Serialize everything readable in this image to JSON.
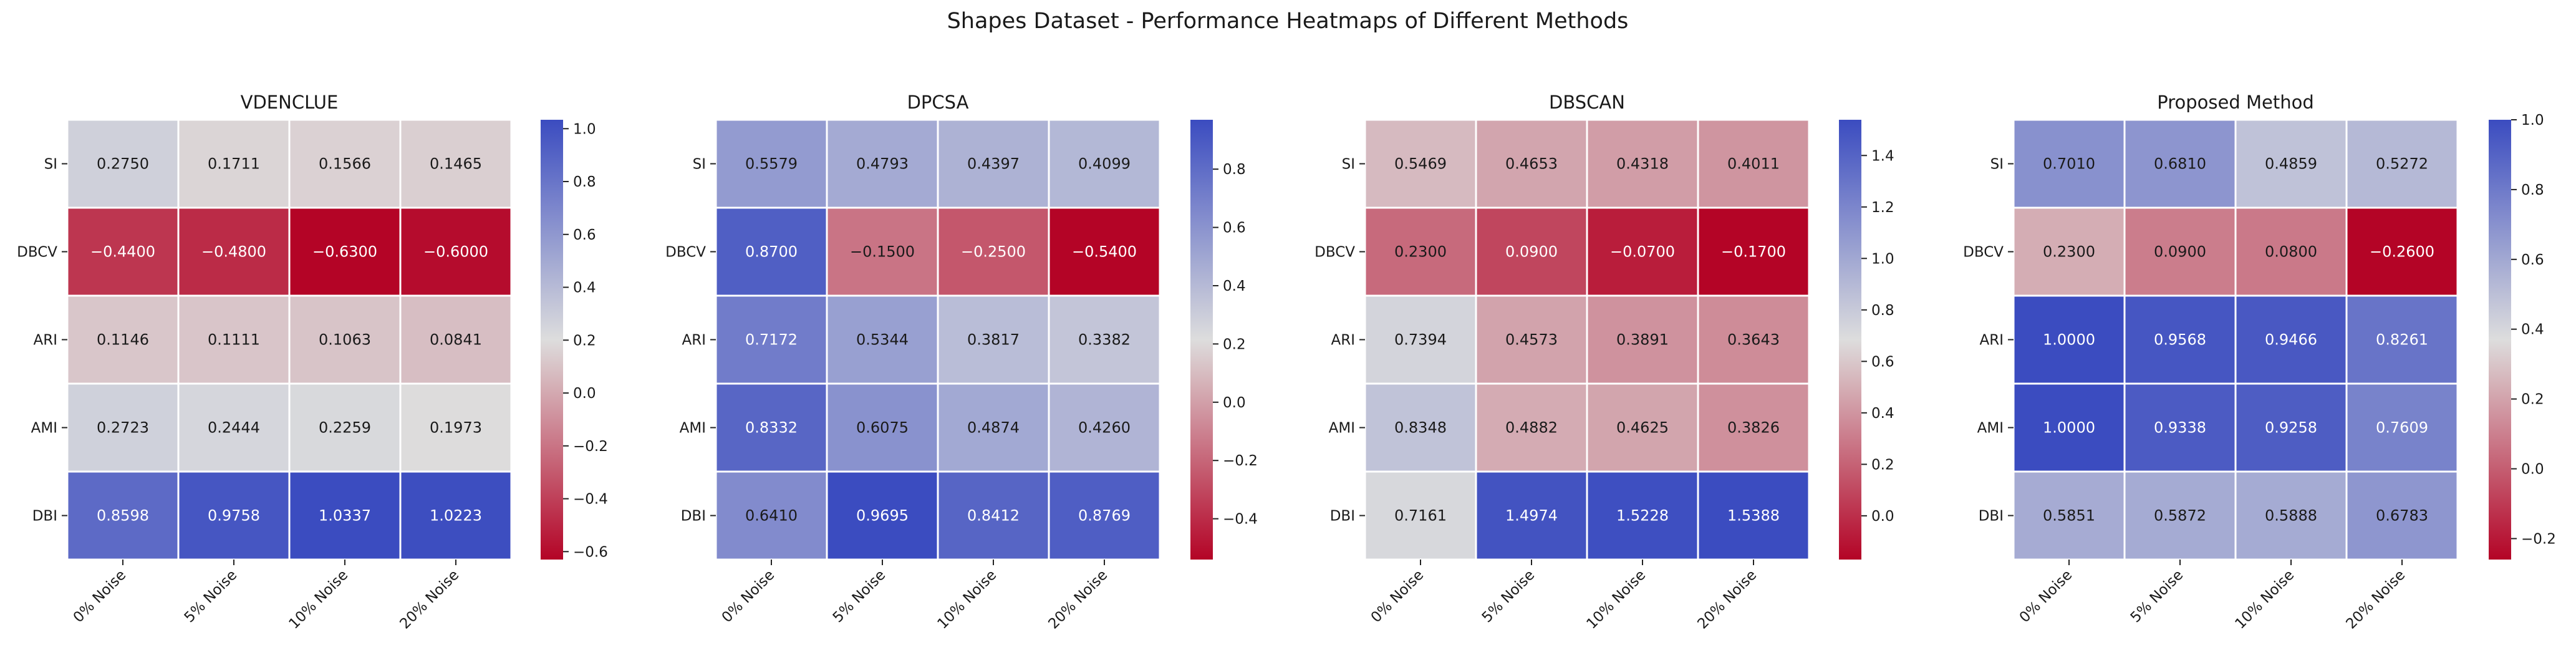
{
  "title": "Shapes Dataset - Performance Heatmaps of Different Methods",
  "colormap": [
    "#3b4cc0",
    "#dddddd",
    "#b40426"
  ],
  "chart_data": [
    {
      "type": "heatmap",
      "title": "VDENCLUE",
      "rows": [
        "SI",
        "DBCV",
        "ARI",
        "AMI",
        "DBI"
      ],
      "columns": [
        "0% Noise",
        "5% Noise",
        "10% Noise",
        "20% Noise"
      ],
      "values": [
        [
          0.275,
          0.1711,
          0.1566,
          0.1465
        ],
        [
          -0.44,
          -0.48,
          -0.63,
          -0.6
        ],
        [
          0.1146,
          0.1111,
          0.1063,
          0.0841
        ],
        [
          0.2723,
          0.2444,
          0.2259,
          0.1973
        ],
        [
          0.8598,
          0.9758,
          1.0337,
          1.0223
        ]
      ],
      "annotations": [
        [
          "0.2750",
          "0.1711",
          "0.1566",
          "0.1465"
        ],
        [
          "−0.4400",
          "−0.4800",
          "−0.6300",
          "−0.6000"
        ],
        [
          "0.1146",
          "0.1111",
          "0.1063",
          "0.0841"
        ],
        [
          "0.2723",
          "0.2444",
          "0.2259",
          "0.1973"
        ],
        [
          "0.8598",
          "0.9758",
          "1.0337",
          "1.0223"
        ]
      ],
      "vmin": -0.63,
      "vmax": 1.0337,
      "colorbar_ticks": [
        1.0,
        0.8,
        0.6,
        0.4,
        0.2,
        0.0,
        -0.2,
        -0.4,
        -0.6
      ],
      "colorbar_labels": [
        "1.0",
        "0.8",
        "0.6",
        "0.4",
        "0.2",
        "0.0",
        "−0.2",
        "−0.4",
        "−0.6"
      ]
    },
    {
      "type": "heatmap",
      "title": "DPCSA",
      "rows": [
        "SI",
        "DBCV",
        "ARI",
        "AMI",
        "DBI"
      ],
      "columns": [
        "0% Noise",
        "5% Noise",
        "10% Noise",
        "20% Noise"
      ],
      "values": [
        [
          0.5579,
          0.4793,
          0.4397,
          0.4099
        ],
        [
          0.87,
          -0.15,
          -0.25,
          -0.54
        ],
        [
          0.7172,
          0.5344,
          0.3817,
          0.3382
        ],
        [
          0.8332,
          0.6075,
          0.4874,
          0.426
        ],
        [
          0.641,
          0.9695,
          0.8412,
          0.8769
        ]
      ],
      "annotations": [
        [
          "0.5579",
          "0.4793",
          "0.4397",
          "0.4099"
        ],
        [
          "0.8700",
          "−0.1500",
          "−0.2500",
          "−0.5400"
        ],
        [
          "0.7172",
          "0.5344",
          "0.3817",
          "0.3382"
        ],
        [
          "0.8332",
          "0.6075",
          "0.4874",
          "0.4260"
        ],
        [
          "0.6410",
          "0.9695",
          "0.8412",
          "0.8769"
        ]
      ],
      "vmin": -0.54,
      "vmax": 0.9695,
      "colorbar_ticks": [
        0.8,
        0.6,
        0.4,
        0.2,
        0.0,
        -0.2,
        -0.4
      ],
      "colorbar_labels": [
        "0.8",
        "0.6",
        "0.4",
        "0.2",
        "0.0",
        "−0.2",
        "−0.4"
      ]
    },
    {
      "type": "heatmap",
      "title": "DBSCAN",
      "rows": [
        "SI",
        "DBCV",
        "ARI",
        "AMI",
        "DBI"
      ],
      "columns": [
        "0% Noise",
        "5% Noise",
        "10% Noise",
        "20% Noise"
      ],
      "values": [
        [
          0.5469,
          0.4653,
          0.4318,
          0.4011
        ],
        [
          0.23,
          0.09,
          -0.07,
          -0.17
        ],
        [
          0.7394,
          0.4573,
          0.3891,
          0.3643
        ],
        [
          0.8348,
          0.4882,
          0.4625,
          0.3826
        ],
        [
          0.7161,
          1.4974,
          1.5228,
          1.5388
        ]
      ],
      "annotations": [
        [
          "0.5469",
          "0.4653",
          "0.4318",
          "0.4011"
        ],
        [
          "0.2300",
          "0.0900",
          "−0.0700",
          "−0.1700"
        ],
        [
          "0.7394",
          "0.4573",
          "0.3891",
          "0.3643"
        ],
        [
          "0.8348",
          "0.4882",
          "0.4625",
          "0.3826"
        ],
        [
          "0.7161",
          "1.4974",
          "1.5228",
          "1.5388"
        ]
      ],
      "vmin": -0.17,
      "vmax": 1.5388,
      "colorbar_ticks": [
        1.4,
        1.2,
        1.0,
        0.8,
        0.6,
        0.4,
        0.2,
        0.0
      ],
      "colorbar_labels": [
        "1.4",
        "1.2",
        "1.0",
        "0.8",
        "0.6",
        "0.4",
        "0.2",
        "0.0"
      ]
    },
    {
      "type": "heatmap",
      "title": "Proposed Method",
      "rows": [
        "SI",
        "DBCV",
        "ARI",
        "AMI",
        "DBI"
      ],
      "columns": [
        "0% Noise",
        "5% Noise",
        "10% Noise",
        "20% Noise"
      ],
      "values": [
        [
          0.701,
          0.681,
          0.4859,
          0.5272
        ],
        [
          0.23,
          0.09,
          0.08,
          -0.26
        ],
        [
          1.0,
          0.9568,
          0.9466,
          0.8261
        ],
        [
          1.0,
          0.9338,
          0.9258,
          0.7609
        ],
        [
          0.5851,
          0.5872,
          0.5888,
          0.6783
        ]
      ],
      "annotations": [
        [
          "0.7010",
          "0.6810",
          "0.4859",
          "0.5272"
        ],
        [
          "0.2300",
          "0.0900",
          "0.0800",
          "−0.2600"
        ],
        [
          "1.0000",
          "0.9568",
          "0.9466",
          "0.8261"
        ],
        [
          "1.0000",
          "0.9338",
          "0.9258",
          "0.7609"
        ],
        [
          "0.5851",
          "0.5872",
          "0.5888",
          "0.6783"
        ]
      ],
      "vmin": -0.26,
      "vmax": 1.0,
      "colorbar_ticks": [
        1.0,
        0.8,
        0.6,
        0.4,
        0.2,
        0.0,
        -0.2
      ],
      "colorbar_labels": [
        "1.0",
        "0.8",
        "0.6",
        "0.4",
        "0.2",
        "0.0",
        "−0.2"
      ]
    }
  ]
}
